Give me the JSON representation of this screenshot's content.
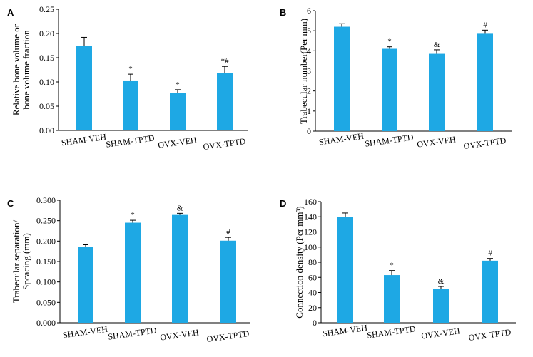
{
  "colors": {
    "bar": "#1ea8e4",
    "axis": "#000000",
    "error": "#000000"
  },
  "chart_data": [
    {
      "panel": "A",
      "type": "bar",
      "ylabel": [
        "Relative bone volume or",
        "bone volume fraction"
      ],
      "categories": [
        "SHAM-VEH",
        "SHAM-TPTD",
        "OVX-VEH",
        "OVX-TPTD"
      ],
      "values": [
        0.175,
        0.103,
        0.077,
        0.119
      ],
      "errors": [
        0.017,
        0.013,
        0.007,
        0.013
      ],
      "significance": [
        "",
        "*",
        "*",
        "*#"
      ],
      "ylim": [
        0,
        0.25
      ],
      "yticks": [
        "0.00",
        "0.05",
        "0.10",
        "0.15",
        "0.20",
        "0.25"
      ],
      "grid": false
    },
    {
      "panel": "B",
      "type": "bar",
      "ylabel": [
        "Trabecular number(Per mm)"
      ],
      "categories": [
        "SHAM-VEH",
        "SHAM-TPTD",
        "OVX-VEH",
        "OVX-TPTD"
      ],
      "values": [
        5.2,
        4.1,
        3.85,
        4.85
      ],
      "errors": [
        0.15,
        0.1,
        0.2,
        0.18
      ],
      "significance": [
        "",
        "*",
        "&",
        "#"
      ],
      "ylim": [
        0,
        6
      ],
      "yticks": [
        "0",
        "1",
        "2",
        "3",
        "4",
        "5",
        "6"
      ],
      "grid": false
    },
    {
      "panel": "C",
      "type": "bar",
      "ylabel": [
        "Trabecular separation/",
        "Spcacing (mm)"
      ],
      "categories": [
        "SHAM-VEH",
        "SHAM-TPTD",
        "OVX-VEH",
        "OVX-TPTD"
      ],
      "values": [
        0.186,
        0.245,
        0.264,
        0.201
      ],
      "errors": [
        0.005,
        0.006,
        0.004,
        0.008
      ],
      "significance": [
        "",
        "*",
        "&",
        "#"
      ],
      "ylim": [
        0,
        0.3
      ],
      "yticks": [
        "0.000",
        "0.050",
        "0.100",
        "0.150",
        "0.200",
        "0.250",
        "0.300"
      ],
      "grid": false
    },
    {
      "panel": "D",
      "type": "bar",
      "ylabel": [
        "Connection density (Per mm³)"
      ],
      "categories": [
        "SHAM-VEH",
        "SHAM-TPTD",
        "OVX-VEH",
        "OVX-TPTD"
      ],
      "values": [
        140,
        63,
        45,
        82
      ],
      "errors": [
        5,
        6,
        3,
        3
      ],
      "significance": [
        "",
        "*",
        "&",
        "#"
      ],
      "ylim": [
        0,
        160
      ],
      "yticks": [
        "0",
        "20",
        "40",
        "60",
        "80",
        "100",
        "120",
        "140",
        "160"
      ],
      "grid": false
    }
  ]
}
